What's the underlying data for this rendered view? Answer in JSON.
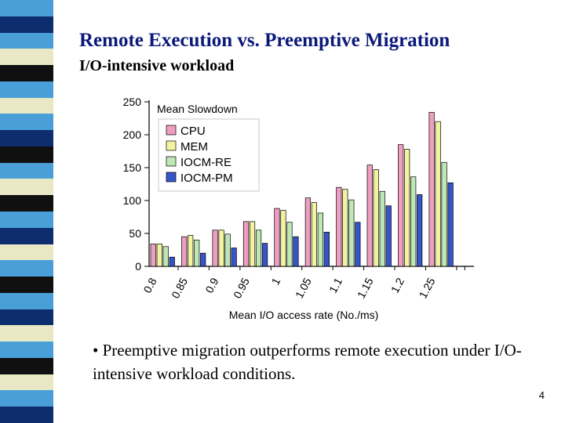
{
  "slide": {
    "title": "Remote Execution vs. Preemptive Migration",
    "subtitle": "I/O-intensive workload",
    "bullet_marker": "•",
    "bullet_text": "Preemptive migration outperforms remote execution under I/O-intensive workload conditions.",
    "page_number": "4"
  },
  "stripe_colors": [
    "#4a9fd8",
    "#0d2d6e",
    "#4a9fd8",
    "#e8e8c4",
    "#101010",
    "#4a9fd8",
    "#e8e8c4",
    "#4a9fd8",
    "#0d2d6e",
    "#101010",
    "#4a9fd8",
    "#e8e8c4",
    "#101010",
    "#4a9fd8",
    "#0d2d6e",
    "#e8e8c4",
    "#4a9fd8",
    "#101010",
    "#4a9fd8",
    "#0d2d6e",
    "#e8e8c4",
    "#4a9fd8",
    "#101010",
    "#e8e8c4",
    "#4a9fd8",
    "#0d2d6e"
  ],
  "chart_data": {
    "type": "bar",
    "title": "Mean Slowdown",
    "xlabel": "Mean I/O access rate (No./ms)",
    "ylabel": "",
    "ylim": [
      0,
      250
    ],
    "yticks": [
      0,
      50,
      100,
      150,
      200,
      250
    ],
    "categories": [
      "0.8",
      "0.85",
      "0.9",
      "0.95",
      "1",
      "1.05",
      "1.1",
      "1.15",
      "1.2",
      "1.25"
    ],
    "legend_position": "top-left",
    "grid": false,
    "series": [
      {
        "name": "CPU",
        "color": "#ee9ec0",
        "values": [
          34,
          45,
          55,
          68,
          88,
          104,
          120,
          154,
          185,
          234
        ]
      },
      {
        "name": "MEM",
        "color": "#f2f2a0",
        "values": [
          34,
          47,
          55,
          68,
          85,
          97,
          117,
          147,
          178,
          220
        ]
      },
      {
        "name": "IOCM-RE",
        "color": "#bde8b4",
        "values": [
          30,
          40,
          49,
          55,
          67,
          81,
          101,
          114,
          136,
          158
        ]
      },
      {
        "name": "IOCM-PM",
        "color": "#3655c8",
        "values": [
          14,
          20,
          28,
          35,
          45,
          52,
          67,
          92,
          109,
          127
        ]
      }
    ]
  }
}
